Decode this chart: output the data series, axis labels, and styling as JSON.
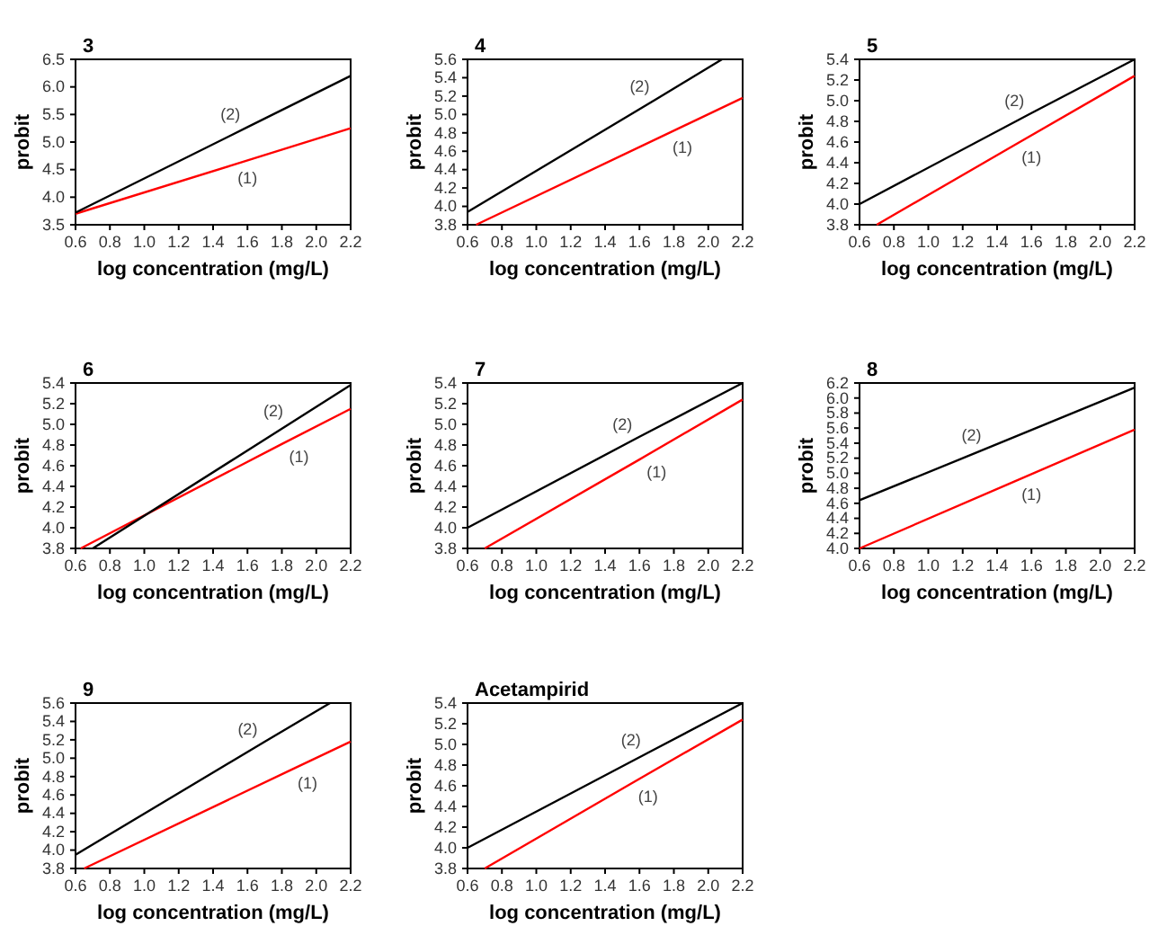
{
  "chart_data": [
    {
      "type": "line",
      "title": "3",
      "xlabel": "log concentration (mg/L)",
      "ylabel": "probit",
      "xlim": [
        0.6,
        2.2
      ],
      "xticks": [
        {
          "value": 0.6,
          "label": "0.6"
        },
        {
          "value": 0.8,
          "label": "0.8"
        },
        {
          "value": 1.0,
          "label": "1.0"
        },
        {
          "value": 1.2,
          "label": "1.2"
        },
        {
          "value": 1.4,
          "label": "1.4"
        },
        {
          "value": 1.6,
          "label": "1.6"
        },
        {
          "value": 1.8,
          "label": "1.8"
        },
        {
          "value": 2.0,
          "label": "2.0"
        },
        {
          "value": 2.2,
          "label": "2.2"
        }
      ],
      "ylim": [
        3.5,
        6.5
      ],
      "yticks": [
        {
          "value": 3.5,
          "label": "3.5"
        },
        {
          "value": 4.0,
          "label": "4.0"
        },
        {
          "value": 4.5,
          "label": "4.5"
        },
        {
          "value": 5.0,
          "label": "5.0"
        },
        {
          "value": 5.5,
          "label": "5.5"
        },
        {
          "value": 6.0,
          "label": "6.0"
        },
        {
          "value": 6.5,
          "label": "6.5"
        }
      ],
      "series": [
        {
          "name": "(1)",
          "color": "#ff0000",
          "x": [
            0.6,
            1.5,
            2.2
          ],
          "values": [
            3.7,
            4.57,
            5.25
          ]
        },
        {
          "name": "(2)",
          "color": "#000000",
          "x": [
            0.6,
            1.6,
            2.2
          ],
          "values": [
            3.72,
            5.27,
            6.2
          ]
        }
      ]
    },
    {
      "type": "line",
      "title": "4",
      "xlabel": "log concentration (mg/L)",
      "ylabel": "probit",
      "xlim": [
        0.6,
        2.2
      ],
      "xticks": [
        {
          "value": 0.6,
          "label": "0.6"
        },
        {
          "value": 0.8,
          "label": "0.8"
        },
        {
          "value": 1.0,
          "label": "1.0"
        },
        {
          "value": 1.2,
          "label": "1.2"
        },
        {
          "value": 1.4,
          "label": "1.4"
        },
        {
          "value": 1.6,
          "label": "1.6"
        },
        {
          "value": 1.8,
          "label": "1.8"
        },
        {
          "value": 2.0,
          "label": "2.0"
        },
        {
          "value": 2.2,
          "label": "2.2"
        }
      ],
      "ylim": [
        3.8,
        5.6
      ],
      "yticks": [
        {
          "value": 3.8,
          "label": "3.8"
        },
        {
          "value": 4.0,
          "label": "4.0"
        },
        {
          "value": 4.2,
          "label": "4.2"
        },
        {
          "value": 4.4,
          "label": "4.4"
        },
        {
          "value": 4.6,
          "label": "4.6"
        },
        {
          "value": 4.8,
          "label": "4.8"
        },
        {
          "value": 5.0,
          "label": "5.0"
        },
        {
          "value": 5.2,
          "label": "5.2"
        },
        {
          "value": 5.4,
          "label": "5.4"
        },
        {
          "value": 5.6,
          "label": "5.6"
        }
      ],
      "series": [
        {
          "name": "(1)",
          "color": "#ff0000",
          "x": [
            0.65,
            1.75,
            2.2
          ],
          "values": [
            3.8,
            4.78,
            5.18
          ]
        },
        {
          "name": "(2)",
          "color": "#000000",
          "x": [
            0.6,
            1.7,
            2.08
          ],
          "values": [
            3.94,
            5.17,
            5.6
          ]
        }
      ]
    },
    {
      "type": "line",
      "title": "5",
      "xlabel": "log concentration (mg/L)",
      "ylabel": "probit",
      "xlim": [
        0.6,
        2.2
      ],
      "xticks": [
        {
          "value": 0.6,
          "label": "0.6"
        },
        {
          "value": 0.8,
          "label": "0.8"
        },
        {
          "value": 1.0,
          "label": "1.0"
        },
        {
          "value": 1.2,
          "label": "1.2"
        },
        {
          "value": 1.4,
          "label": "1.4"
        },
        {
          "value": 1.6,
          "label": "1.6"
        },
        {
          "value": 1.8,
          "label": "1.8"
        },
        {
          "value": 2.0,
          "label": "2.0"
        },
        {
          "value": 2.2,
          "label": "2.2"
        }
      ],
      "ylim": [
        3.8,
        5.4
      ],
      "yticks": [
        {
          "value": 3.8,
          "label": "3.8"
        },
        {
          "value": 4.0,
          "label": "4.0"
        },
        {
          "value": 4.2,
          "label": "4.2"
        },
        {
          "value": 4.4,
          "label": "4.4"
        },
        {
          "value": 4.6,
          "label": "4.6"
        },
        {
          "value": 4.8,
          "label": "4.8"
        },
        {
          "value": 5.0,
          "label": "5.0"
        },
        {
          "value": 5.2,
          "label": "5.2"
        },
        {
          "value": 5.4,
          "label": "5.4"
        }
      ],
      "series": [
        {
          "name": "(1)",
          "color": "#ff0000",
          "x": [
            0.7,
            1.5,
            2.2
          ],
          "values": [
            3.8,
            4.57,
            5.24
          ]
        },
        {
          "name": "(2)",
          "color": "#000000",
          "x": [
            0.6,
            1.6,
            2.2
          ],
          "values": [
            4.0,
            4.88,
            5.4
          ]
        }
      ]
    },
    {
      "type": "line",
      "title": "6",
      "xlabel": "log concentration (mg/L)",
      "ylabel": "probit",
      "xlim": [
        0.6,
        2.2
      ],
      "xticks": [
        {
          "value": 0.6,
          "label": "0.6"
        },
        {
          "value": 0.8,
          "label": "0.8"
        },
        {
          "value": 1.0,
          "label": "1.0"
        },
        {
          "value": 1.2,
          "label": "1.2"
        },
        {
          "value": 1.4,
          "label": "1.4"
        },
        {
          "value": 1.6,
          "label": "1.6"
        },
        {
          "value": 1.8,
          "label": "1.8"
        },
        {
          "value": 2.0,
          "label": "2.0"
        },
        {
          "value": 2.2,
          "label": "2.2"
        }
      ],
      "ylim": [
        3.8,
        5.4
      ],
      "yticks": [
        {
          "value": 3.8,
          "label": "3.8"
        },
        {
          "value": 4.0,
          "label": "4.0"
        },
        {
          "value": 4.2,
          "label": "4.2"
        },
        {
          "value": 4.4,
          "label": "4.4"
        },
        {
          "value": 4.6,
          "label": "4.6"
        },
        {
          "value": 4.8,
          "label": "4.8"
        },
        {
          "value": 5.0,
          "label": "5.0"
        },
        {
          "value": 5.2,
          "label": "5.2"
        },
        {
          "value": 5.4,
          "label": "5.4"
        }
      ],
      "series": [
        {
          "name": "(1)",
          "color": "#ff0000",
          "x": [
            0.63,
            1.8,
            2.2
          ],
          "values": [
            3.8,
            4.81,
            5.15
          ]
        },
        {
          "name": "(2)",
          "color": "#000000",
          "x": [
            0.7,
            1.85,
            2.2
          ],
          "values": [
            3.8,
            5.01,
            5.38
          ]
        }
      ]
    },
    {
      "type": "line",
      "title": "7",
      "xlabel": "log concentration (mg/L)",
      "ylabel": "probit",
      "xlim": [
        0.6,
        2.2
      ],
      "xticks": [
        {
          "value": 0.6,
          "label": "0.6"
        },
        {
          "value": 0.8,
          "label": "0.8"
        },
        {
          "value": 1.0,
          "label": "1.0"
        },
        {
          "value": 1.2,
          "label": "1.2"
        },
        {
          "value": 1.4,
          "label": "1.4"
        },
        {
          "value": 1.6,
          "label": "1.6"
        },
        {
          "value": 1.8,
          "label": "1.8"
        },
        {
          "value": 2.0,
          "label": "2.0"
        },
        {
          "value": 2.2,
          "label": "2.2"
        }
      ],
      "ylim": [
        3.8,
        5.4
      ],
      "yticks": [
        {
          "value": 3.8,
          "label": "3.8"
        },
        {
          "value": 4.0,
          "label": "4.0"
        },
        {
          "value": 4.2,
          "label": "4.2"
        },
        {
          "value": 4.4,
          "label": "4.4"
        },
        {
          "value": 4.6,
          "label": "4.6"
        },
        {
          "value": 4.8,
          "label": "4.8"
        },
        {
          "value": 5.0,
          "label": "5.0"
        },
        {
          "value": 5.2,
          "label": "5.2"
        },
        {
          "value": 5.4,
          "label": "5.4"
        }
      ],
      "series": [
        {
          "name": "(1)",
          "color": "#ff0000",
          "x": [
            0.7,
            1.6,
            2.2
          ],
          "values": [
            3.8,
            4.66,
            5.24
          ]
        },
        {
          "name": "(2)",
          "color": "#000000",
          "x": [
            0.6,
            1.6,
            2.2
          ],
          "values": [
            4.0,
            4.88,
            5.4
          ]
        }
      ]
    },
    {
      "type": "line",
      "title": "8",
      "xlabel": "log concentration (mg/L)",
      "ylabel": "probit",
      "xlim": [
        0.6,
        2.2
      ],
      "xticks": [
        {
          "value": 0.6,
          "label": "0.6"
        },
        {
          "value": 0.8,
          "label": "0.8"
        },
        {
          "value": 1.0,
          "label": "1.0"
        },
        {
          "value": 1.2,
          "label": "1.2"
        },
        {
          "value": 1.4,
          "label": "1.4"
        },
        {
          "value": 1.6,
          "label": "1.6"
        },
        {
          "value": 1.8,
          "label": "1.8"
        },
        {
          "value": 2.0,
          "label": "2.0"
        },
        {
          "value": 2.2,
          "label": "2.2"
        }
      ],
      "ylim": [
        4.0,
        6.2
      ],
      "yticks": [
        {
          "value": 4.0,
          "label": "4.0"
        },
        {
          "value": 4.2,
          "label": "4.2"
        },
        {
          "value": 4.4,
          "label": "4.4"
        },
        {
          "value": 4.6,
          "label": "4.6"
        },
        {
          "value": 4.8,
          "label": "4.8"
        },
        {
          "value": 5.0,
          "label": "5.0"
        },
        {
          "value": 5.2,
          "label": "5.2"
        },
        {
          "value": 5.4,
          "label": "5.4"
        },
        {
          "value": 5.6,
          "label": "5.6"
        },
        {
          "value": 5.8,
          "label": "5.8"
        },
        {
          "value": 6.0,
          "label": "6.0"
        },
        {
          "value": 6.2,
          "label": "6.2"
        }
      ],
      "series": [
        {
          "name": "(1)",
          "color": "#ff0000",
          "x": [
            0.6,
            1.5,
            2.2
          ],
          "values": [
            4.0,
            4.89,
            5.58
          ]
        },
        {
          "name": "(2)",
          "color": "#000000",
          "x": [
            0.6,
            1.35,
            2.2
          ],
          "values": [
            4.64,
            5.34,
            6.14
          ]
        }
      ]
    },
    {
      "type": "line",
      "title": "9",
      "xlabel": "log concentration (mg/L)",
      "ylabel": "probit",
      "xlim": [
        0.6,
        2.2
      ],
      "xticks": [
        {
          "value": 0.6,
          "label": "0.6"
        },
        {
          "value": 0.8,
          "label": "0.8"
        },
        {
          "value": 1.0,
          "label": "1.0"
        },
        {
          "value": 1.2,
          "label": "1.2"
        },
        {
          "value": 1.4,
          "label": "1.4"
        },
        {
          "value": 1.6,
          "label": "1.6"
        },
        {
          "value": 1.8,
          "label": "1.8"
        },
        {
          "value": 2.0,
          "label": "2.0"
        },
        {
          "value": 2.2,
          "label": "2.2"
        }
      ],
      "ylim": [
        3.8,
        5.6
      ],
      "yticks": [
        {
          "value": 3.8,
          "label": "3.8"
        },
        {
          "value": 4.0,
          "label": "4.0"
        },
        {
          "value": 4.2,
          "label": "4.2"
        },
        {
          "value": 4.4,
          "label": "4.4"
        },
        {
          "value": 4.6,
          "label": "4.6"
        },
        {
          "value": 4.8,
          "label": "4.8"
        },
        {
          "value": 5.0,
          "label": "5.0"
        },
        {
          "value": 5.2,
          "label": "5.2"
        },
        {
          "value": 5.4,
          "label": "5.4"
        },
        {
          "value": 5.6,
          "label": "5.6"
        }
      ],
      "series": [
        {
          "name": "(1)",
          "color": "#ff0000",
          "x": [
            0.65,
            1.85,
            2.2
          ],
          "values": [
            3.8,
            4.87,
            5.18
          ]
        },
        {
          "name": "(2)",
          "color": "#000000",
          "x": [
            0.6,
            1.7,
            2.08
          ],
          "values": [
            3.95,
            5.18,
            5.6
          ]
        }
      ]
    },
    {
      "type": "line",
      "title": "Acetampirid",
      "xlabel": "log concentration (mg/L)",
      "ylabel": "probit",
      "xlim": [
        0.6,
        2.2
      ],
      "xticks": [
        {
          "value": 0.6,
          "label": "0.6"
        },
        {
          "value": 0.8,
          "label": "0.8"
        },
        {
          "value": 1.0,
          "label": "1.0"
        },
        {
          "value": 1.2,
          "label": "1.2"
        },
        {
          "value": 1.4,
          "label": "1.4"
        },
        {
          "value": 1.6,
          "label": "1.6"
        },
        {
          "value": 1.8,
          "label": "1.8"
        },
        {
          "value": 2.0,
          "label": "2.0"
        },
        {
          "value": 2.2,
          "label": "2.2"
        }
      ],
      "ylim": [
        3.8,
        5.4
      ],
      "yticks": [
        {
          "value": 3.8,
          "label": "3.8"
        },
        {
          "value": 4.0,
          "label": "4.0"
        },
        {
          "value": 4.2,
          "label": "4.2"
        },
        {
          "value": 4.4,
          "label": "4.4"
        },
        {
          "value": 4.6,
          "label": "4.6"
        },
        {
          "value": 4.8,
          "label": "4.8"
        },
        {
          "value": 5.0,
          "label": "5.0"
        },
        {
          "value": 5.2,
          "label": "5.2"
        },
        {
          "value": 5.4,
          "label": "5.4"
        }
      ],
      "series": [
        {
          "name": "(1)",
          "color": "#ff0000",
          "x": [
            0.7,
            1.55,
            2.2
          ],
          "values": [
            3.8,
            4.62,
            5.24
          ]
        },
        {
          "name": "(2)",
          "color": "#000000",
          "x": [
            0.6,
            1.65,
            2.2
          ],
          "values": [
            4.0,
            4.92,
            5.4
          ]
        }
      ]
    }
  ]
}
